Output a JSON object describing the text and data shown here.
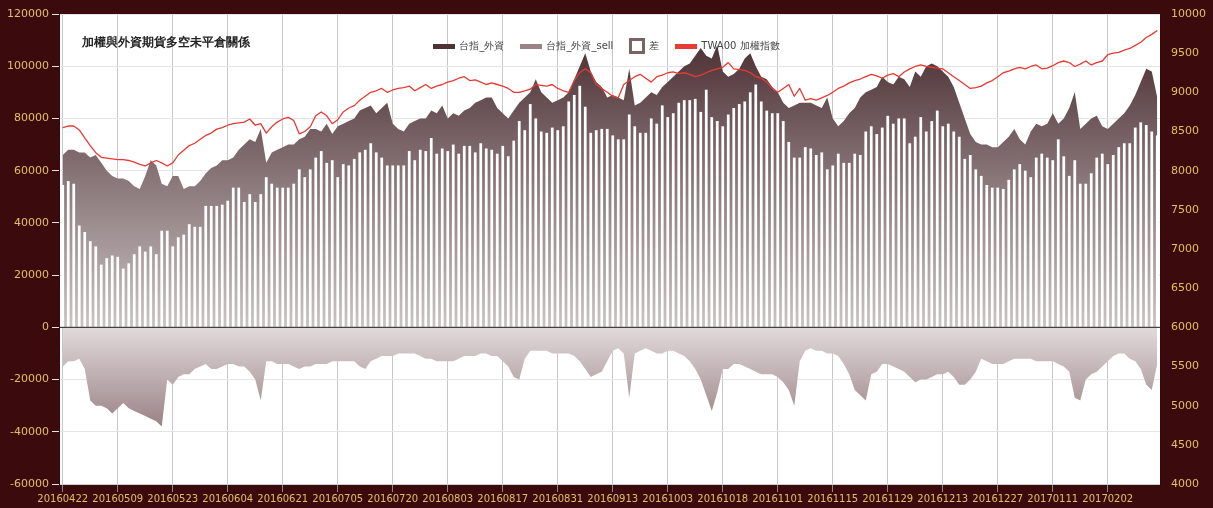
{
  "chart_data": {
    "type": "area",
    "title": "加權與外資期貨多空未平倉關係",
    "categories": [
      "20160422",
      null,
      null,
      null,
      null,
      null,
      null,
      null,
      null,
      null,
      "20160509",
      null,
      null,
      null,
      null,
      null,
      null,
      null,
      null,
      null,
      "20160523",
      null,
      null,
      null,
      null,
      null,
      null,
      null,
      null,
      null,
      "20160604",
      null,
      null,
      null,
      null,
      null,
      null,
      null,
      null,
      null,
      "20160621",
      null,
      null,
      null,
      null,
      null,
      null,
      null,
      null,
      null,
      "20160705",
      null,
      null,
      null,
      null,
      null,
      null,
      null,
      null,
      null,
      "20160720",
      null,
      null,
      null,
      null,
      null,
      null,
      null,
      null,
      null,
      "20160803",
      null,
      null,
      null,
      null,
      null,
      null,
      null,
      null,
      null,
      "20160817",
      null,
      null,
      null,
      null,
      null,
      null,
      null,
      null,
      null,
      "20160831",
      null,
      null,
      null,
      null,
      null,
      null,
      null,
      null,
      null,
      "20160913",
      null,
      null,
      null,
      null,
      null,
      null,
      null,
      null,
      null,
      "20161003",
      null,
      null,
      null,
      null,
      null,
      null,
      null,
      null,
      null,
      "20161018",
      null,
      null,
      null,
      null,
      null,
      null,
      null,
      null,
      null,
      "20161101",
      null,
      null,
      null,
      null,
      null,
      null,
      null,
      null,
      null,
      "20161115",
      null,
      null,
      null,
      null,
      null,
      null,
      null,
      null,
      null,
      "20161129",
      null,
      null,
      null,
      null,
      null,
      null,
      null,
      null,
      null,
      "20161213",
      null,
      null,
      null,
      null,
      null,
      null,
      null,
      null,
      null,
      "20161227",
      null,
      null,
      null,
      null,
      null,
      null,
      null,
      null,
      null,
      "20170111",
      null,
      null,
      null,
      null,
      null,
      null,
      null,
      null,
      null,
      "20170202",
      null,
      null,
      null,
      null,
      null,
      null,
      null,
      null,
      null
    ],
    "series": [
      {
        "name": "台指_外資",
        "color": "#4e3236",
        "values": [
          66000,
          68000,
          68000,
          67000,
          67000,
          65000,
          66000,
          63000,
          60000,
          58000,
          57000,
          57000,
          56000,
          54000,
          53000,
          58000,
          64000,
          62000,
          55000,
          54000,
          58000,
          58000,
          53000,
          54000,
          54000,
          56000,
          59000,
          61000,
          62000,
          64000,
          64000,
          65000,
          68000,
          70000,
          72000,
          71000,
          76000,
          63000,
          67000,
          68000,
          69000,
          70000,
          70000,
          72000,
          73000,
          76000,
          76000,
          75000,
          78000,
          74000,
          77000,
          78000,
          79000,
          80000,
          83000,
          84000,
          85000,
          82000,
          84000,
          86000,
          78000,
          76000,
          75000,
          78000,
          79000,
          80000,
          80000,
          83000,
          82000,
          85000,
          80000,
          82000,
          81000,
          83000,
          84000,
          86000,
          87000,
          88000,
          88000,
          84000,
          82000,
          80000,
          83000,
          86000,
          88000,
          90000,
          95000,
          90000,
          88000,
          86000,
          87000,
          88000,
          90000,
          95000,
          100000,
          105000,
          98000,
          94000,
          92000,
          88000,
          89000,
          88000,
          87000,
          99000,
          85000,
          86000,
          88000,
          90000,
          89000,
          92000,
          94000,
          96000,
          98000,
          100000,
          101000,
          104000,
          107000,
          104000,
          103000,
          108000,
          98000,
          96000,
          97000,
          99000,
          103000,
          105000,
          100000,
          96000,
          95000,
          92000,
          90000,
          86000,
          84000,
          85000,
          86000,
          86000,
          86000,
          85000,
          84000,
          88000,
          80000,
          77000,
          79000,
          82000,
          84000,
          88000,
          90000,
          91000,
          92000,
          96000,
          94000,
          93000,
          96000,
          95000,
          92000,
          98000,
          96000,
          100000,
          101000,
          100000,
          98000,
          96000,
          92000,
          86000,
          80000,
          74000,
          71000,
          70000,
          70000,
          69000,
          69000,
          71000,
          73000,
          76000,
          72000,
          70000,
          75000,
          78000,
          77000,
          78000,
          82000,
          78000,
          80000,
          84000,
          90000,
          76000,
          78000,
          80000,
          81000,
          77000,
          76000,
          78000,
          80000,
          82000,
          85000,
          89000,
          94000,
          99000,
          98000,
          88000
        ]
      },
      {
        "name": "台指_外資_sell",
        "color": "#9a8286",
        "values": [
          -15000,
          -13000,
          -13000,
          -12000,
          -16000,
          -28000,
          -30000,
          -30000,
          -31000,
          -33000,
          -31000,
          -29000,
          -31000,
          -32000,
          -33000,
          -34000,
          -35000,
          -36000,
          -38000,
          -20000,
          -22000,
          -19000,
          -18000,
          -18000,
          -16000,
          -15000,
          -14000,
          -16000,
          -16000,
          -15000,
          -14000,
          -14000,
          -15000,
          -15000,
          -17000,
          -20000,
          -28000,
          -13000,
          -13000,
          -14000,
          -14000,
          -14000,
          -15000,
          -16000,
          -15000,
          -15000,
          -14000,
          -14000,
          -14000,
          -13000,
          -13000,
          -13000,
          -13000,
          -13000,
          -15000,
          -16000,
          -13000,
          -12000,
          -11000,
          -11000,
          -11000,
          -10000,
          -10000,
          -10000,
          -10000,
          -11000,
          -12000,
          -12000,
          -13000,
          -13000,
          -13000,
          -13000,
          -12000,
          -11000,
          -11000,
          -11000,
          -10000,
          -10000,
          -11000,
          -11000,
          -13000,
          -15000,
          -19000,
          -20000,
          -12000,
          -9000,
          -9000,
          -9000,
          -9000,
          -10000,
          -10000,
          -10000,
          -10000,
          -11000,
          -13000,
          -16000,
          -19000,
          -18000,
          -17000,
          -13000,
          -9000,
          -8000,
          -10000,
          -27000,
          -10000,
          -9000,
          -8000,
          -9000,
          -10000,
          -10000,
          -9000,
          -9000,
          -10000,
          -11000,
          -13000,
          -16000,
          -20000,
          -26000,
          -32000,
          -25000,
          -16000,
          -16000,
          -14000,
          -14000,
          -15000,
          -16000,
          -17000,
          -18000,
          -18000,
          -18000,
          -19000,
          -21000,
          -24000,
          -30000,
          -13000,
          -9000,
          -8000,
          -9000,
          -9000,
          -10000,
          -10000,
          -11000,
          -14000,
          -18000,
          -24000,
          -26000,
          -28000,
          -18000,
          -17000,
          -14000,
          -14000,
          -15000,
          -16000,
          -17000,
          -19000,
          -21000,
          -20000,
          -20000,
          -19000,
          -18000,
          -18000,
          -17000,
          -19000,
          -22000,
          -22000,
          -20000,
          -17000,
          -12000,
          -13000,
          -14000,
          -14000,
          -14000,
          -13000,
          -12000,
          -12000,
          -12000,
          -12000,
          -13000,
          -13000,
          -13000,
          -13000,
          -14000,
          -15000,
          -17000,
          -27000,
          -28000,
          -20000,
          -18000,
          -17000,
          -15000,
          -13000,
          -11000,
          -10000,
          -10000,
          -12000,
          -13000,
          -16000,
          -22000,
          -24000,
          -14000
        ]
      },
      {
        "name": "差",
        "type": "bar",
        "color": "#ffffff",
        "values": [
          54500,
          56000,
          55000,
          39000,
          36500,
          33000,
          31000,
          24000,
          26500,
          27500,
          27000,
          22500,
          24500,
          28000,
          31000,
          29000,
          31000,
          28000,
          37000,
          37000,
          31000,
          34500,
          35500,
          39500,
          38500,
          38500,
          46500,
          46500,
          46500,
          47000,
          48500,
          53500,
          53500,
          48000,
          51000,
          48000,
          51000,
          57500,
          55000,
          53500,
          53500,
          53500,
          55000,
          60500,
          57500,
          60500,
          65000,
          67500,
          63000,
          64000,
          57500,
          62500,
          62000,
          64500,
          67000,
          68000,
          70500,
          67000,
          65000,
          62000,
          62000,
          62000,
          62000,
          67500,
          64000,
          68000,
          67500,
          72500,
          66500,
          68500,
          67500,
          70000,
          66500,
          69500,
          69500,
          67000,
          70500,
          68500,
          68000,
          66500,
          69500,
          65500,
          71500,
          79000,
          75500,
          85500,
          80000,
          75000,
          74500,
          76500,
          75500,
          77000,
          86500,
          89000,
          92500,
          84500,
          74500,
          75500,
          76000,
          76000,
          73500,
          72000,
          72000,
          81500,
          77000,
          74500,
          74500,
          80000,
          78000,
          85000,
          80500,
          82000,
          86000,
          87000,
          87000,
          87500,
          82500,
          91000,
          80500,
          79000,
          77000,
          81500,
          84000,
          85500,
          86500,
          90000,
          93000,
          86500,
          83000,
          82000,
          82000,
          79000,
          71000,
          65000,
          65000,
          69000,
          68500,
          66000,
          67000,
          60500,
          62000,
          66500,
          63000,
          63000,
          66500,
          66000,
          75000,
          77000,
          74000,
          76500,
          81000,
          78000,
          80000,
          80000,
          70500,
          73000,
          80500,
          75000,
          79000,
          83000,
          77000,
          78000,
          75000,
          73000,
          64500,
          66000,
          60500,
          58000,
          54500,
          53500,
          53500,
          53000,
          56500,
          60500,
          62500,
          60000,
          57500,
          65000,
          66500,
          65000,
          64000,
          72000,
          65500,
          58000,
          64000,
          55000,
          55000,
          59000,
          65000,
          66500,
          62500,
          66000,
          69000,
          70500,
          70500,
          76500,
          78500,
          77500,
          75000,
          73500
        ]
      },
      {
        "name": "TWA00 加權指數",
        "type": "line",
        "axis": "y2",
        "color": "#e63a32",
        "values": [
          8550,
          8570,
          8570,
          8520,
          8420,
          8320,
          8230,
          8170,
          8160,
          8150,
          8140,
          8140,
          8130,
          8110,
          8080,
          8060,
          8100,
          8130,
          8100,
          8060,
          8100,
          8200,
          8260,
          8320,
          8350,
          8400,
          8450,
          8480,
          8530,
          8550,
          8580,
          8600,
          8610,
          8620,
          8660,
          8580,
          8600,
          8480,
          8560,
          8620,
          8660,
          8680,
          8640,
          8470,
          8500,
          8560,
          8700,
          8750,
          8700,
          8600,
          8650,
          8750,
          8800,
          8830,
          8900,
          8950,
          9000,
          9020,
          9050,
          9000,
          9030,
          9050,
          9060,
          9080,
          9020,
          9060,
          9100,
          9050,
          9080,
          9100,
          9130,
          9150,
          9180,
          9200,
          9150,
          9160,
          9130,
          9100,
          9120,
          9100,
          9080,
          9050,
          9000,
          9000,
          9020,
          9040,
          9100,
          9090,
          9080,
          9100,
          9050,
          9020,
          9000,
          9150,
          9250,
          9300,
          9250,
          9100,
          9050,
          9000,
          8950,
          8930,
          9100,
          9150,
          9200,
          9230,
          9180,
          9130,
          9200,
          9220,
          9250,
          9260,
          9240,
          9250,
          9230,
          9200,
          9220,
          9250,
          9280,
          9300,
          9320,
          9380,
          9300,
          9290,
          9280,
          9250,
          9200,
          9180,
          9130,
          9050,
          9000,
          9050,
          9100,
          8950,
          9050,
          8900,
          8920,
          8900,
          8930,
          8960,
          9000,
          9050,
          9080,
          9120,
          9150,
          9170,
          9200,
          9230,
          9210,
          9180,
          9220,
          9240,
          9200,
          9260,
          9300,
          9330,
          9350,
          9330,
          9320,
          9310,
          9300,
          9250,
          9200,
          9150,
          9100,
          9050,
          9060,
          9080,
          9120,
          9150,
          9200,
          9250,
          9270,
          9300,
          9320,
          9300,
          9330,
          9350,
          9300,
          9310,
          9340,
          9380,
          9400,
          9380,
          9330,
          9360,
          9400,
          9350,
          9380,
          9400,
          9480,
          9500,
          9510,
          9540,
          9560,
          9600,
          9640,
          9700,
          9740,
          9790
        ]
      }
    ],
    "ylim": [
      -60000,
      120000
    ],
    "yticks": [
      -60000,
      -40000,
      -20000,
      0,
      20000,
      40000,
      60000,
      80000,
      100000,
      120000
    ],
    "y2lim": [
      4000,
      10000
    ],
    "y2ticks": [
      4000,
      4500,
      5000,
      5500,
      6000,
      6500,
      7000,
      7500,
      8000,
      8500,
      9000,
      9500,
      10000
    ],
    "grid": true,
    "legend": "top",
    "marker": "none"
  }
}
